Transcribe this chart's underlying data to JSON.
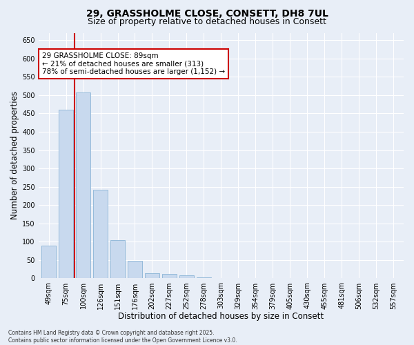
{
  "title_line1": "29, GRASSHOLME CLOSE, CONSETT, DH8 7UL",
  "title_line2": "Size of property relative to detached houses in Consett",
  "xlabel": "Distribution of detached houses by size in Consett",
  "ylabel": "Number of detached properties",
  "categories": [
    "49sqm",
    "75sqm",
    "100sqm",
    "126sqm",
    "151sqm",
    "176sqm",
    "202sqm",
    "227sqm",
    "252sqm",
    "278sqm",
    "303sqm",
    "329sqm",
    "354sqm",
    "379sqm",
    "405sqm",
    "430sqm",
    "455sqm",
    "481sqm",
    "506sqm",
    "532sqm",
    "557sqm"
  ],
  "values": [
    90,
    460,
    507,
    242,
    105,
    48,
    15,
    12,
    8,
    3,
    1,
    0,
    0,
    0,
    1,
    0,
    0,
    0,
    1,
    0,
    1
  ],
  "bar_color": "#c8d9ee",
  "bar_edge_color": "#7aaad0",
  "vline_color": "#cc0000",
  "annotation_text": "29 GRASSHOLME CLOSE: 89sqm\n← 21% of detached houses are smaller (313)\n78% of semi-detached houses are larger (1,152) →",
  "annotation_box_facecolor": "#ffffff",
  "annotation_box_edgecolor": "#cc0000",
  "ylim": [
    0,
    670
  ],
  "yticks": [
    0,
    50,
    100,
    150,
    200,
    250,
    300,
    350,
    400,
    450,
    500,
    550,
    600,
    650
  ],
  "bg_color": "#e8eef7",
  "plot_bg_color": "#e8eef7",
  "grid_color": "#ffffff",
  "footer": "Contains HM Land Registry data © Crown copyright and database right 2025.\nContains public sector information licensed under the Open Government Licence v3.0.",
  "title_fontsize": 10,
  "subtitle_fontsize": 9,
  "tick_fontsize": 7,
  "label_fontsize": 8.5,
  "annotation_fontsize": 7.5,
  "footer_fontsize": 5.5
}
